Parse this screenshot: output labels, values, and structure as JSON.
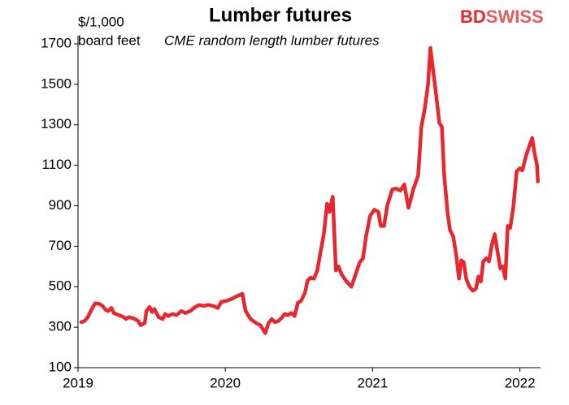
{
  "chart_data": {
    "type": "line",
    "title": "Lumber futures",
    "y_label_lines": [
      "$/1,000",
      "board feet"
    ],
    "annotation": "CME random length lumber futures",
    "logo": [
      "BD",
      "SWISS"
    ],
    "color": "#e8262d",
    "xlim": [
      2019,
      2022.14
    ],
    "xticks": [
      2019,
      2020,
      2021,
      2022
    ],
    "ylim": [
      100,
      1700
    ],
    "yticks": [
      100,
      300,
      500,
      700,
      900,
      1100,
      1300,
      1500,
      1700
    ],
    "grid": false,
    "x": [
      2019.022,
      2019.044,
      2019.066,
      2019.094,
      2019.116,
      2019.144,
      2019.166,
      2019.188,
      2019.204,
      2019.227,
      2019.243,
      2019.276,
      2019.309,
      2019.326,
      2019.343,
      2019.37,
      2019.387,
      2019.409,
      2019.425,
      2019.453,
      2019.464,
      2019.486,
      2019.503,
      2019.519,
      2019.547,
      2019.575,
      2019.591,
      2019.613,
      2019.641,
      2019.669,
      2019.702,
      2019.729,
      2019.762,
      2019.796,
      2019.823,
      2019.851,
      2019.884,
      2019.917,
      2019.95,
      2019.972,
      2020.006,
      2020.044,
      2020.083,
      2020.116,
      2020.138,
      2020.171,
      2020.21,
      2020.238,
      2020.271,
      2020.293,
      2020.315,
      2020.337,
      2020.359,
      2020.381,
      2020.403,
      2020.425,
      2020.448,
      2020.47,
      2020.492,
      2020.514,
      2020.541,
      2020.558,
      2020.58,
      2020.602,
      2020.624,
      2020.641,
      2020.669,
      2020.691,
      2020.707,
      2020.729,
      2020.751,
      2020.768,
      2020.79,
      2020.818,
      2020.856,
      2020.884,
      2020.912,
      2020.934,
      2020.956,
      2020.983,
      2021.011,
      2021.039,
      2021.055,
      2021.077,
      2021.099,
      2021.133,
      2021.16,
      2021.188,
      2021.215,
      2021.243,
      2021.276,
      2021.309,
      2021.331,
      2021.354,
      2021.376,
      2021.392,
      2021.414,
      2021.431,
      2021.453,
      2021.47,
      2021.486,
      2021.508,
      2021.525,
      2021.547,
      2021.569,
      2021.586,
      2021.602,
      2021.619,
      2021.635,
      2021.657,
      2021.68,
      2021.702,
      2021.718,
      2021.735,
      2021.751,
      2021.773,
      2021.79,
      2021.807,
      2021.829,
      2021.851,
      2021.867,
      2021.884,
      2021.901,
      2021.917,
      2021.934,
      2021.956,
      2021.978,
      2022.0,
      2022.017,
      2022.039,
      2022.061,
      2022.083,
      2022.099,
      2022.116,
      2022.122
    ],
    "values": [
      325,
      330,
      350,
      390,
      418,
      415,
      405,
      385,
      380,
      395,
      370,
      360,
      350,
      340,
      350,
      345,
      340,
      330,
      310,
      320,
      380,
      400,
      375,
      390,
      350,
      340,
      365,
      355,
      365,
      360,
      380,
      370,
      380,
      400,
      410,
      405,
      410,
      405,
      395,
      425,
      430,
      440,
      455,
      465,
      380,
      340,
      320,
      310,
      270,
      320,
      340,
      325,
      330,
      345,
      365,
      360,
      370,
      355,
      420,
      430,
      470,
      530,
      545,
      540,
      580,
      650,
      760,
      910,
      870,
      945,
      580,
      600,
      560,
      530,
      500,
      560,
      620,
      640,
      750,
      850,
      880,
      870,
      800,
      800,
      900,
      980,
      985,
      975,
      1005,
      890,
      980,
      1050,
      1290,
      1380,
      1500,
      1680,
      1550,
      1450,
      1310,
      1290,
      1050,
      870,
      780,
      750,
      650,
      540,
      630,
      620,
      540,
      500,
      480,
      490,
      550,
      525,
      625,
      640,
      625,
      700,
      760,
      660,
      590,
      600,
      540,
      800,
      790,
      900,
      1070,
      1085,
      1075,
      1140,
      1190,
      1235,
      1160,
      1100,
      1020
    ]
  }
}
